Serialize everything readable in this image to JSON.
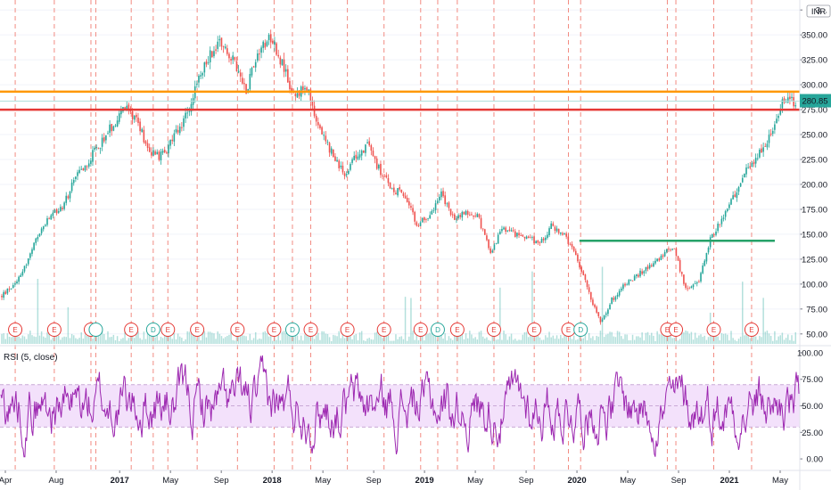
{
  "chart_data": [
    {
      "type": "candlestick",
      "currency": "INR",
      "last_price": "280.85",
      "y_range": [
        40,
        385
      ],
      "y_ticks": [
        "50.00",
        "75.00",
        "100.00",
        "125.00",
        "150.00",
        "175.00",
        "200.00",
        "225.00",
        "250.00",
        "275.00",
        "300.00",
        "325.00",
        "350.00",
        "3..."
      ],
      "y_tick_values": [
        50,
        75,
        100,
        125,
        150,
        175,
        200,
        225,
        250,
        275,
        300,
        325,
        350,
        375
      ],
      "x_axis_labels": [
        {
          "t": "Apr",
          "pos": 0,
          "bold": false
        },
        {
          "t": "Aug",
          "pos": 4,
          "bold": false
        },
        {
          "t": "2017",
          "pos": 9,
          "bold": true
        },
        {
          "t": "May",
          "pos": 13,
          "bold": false
        },
        {
          "t": "Sep",
          "pos": 17,
          "bold": false
        },
        {
          "t": "2018",
          "pos": 21,
          "bold": true
        },
        {
          "t": "May",
          "pos": 25,
          "bold": false
        },
        {
          "t": "Sep",
          "pos": 29,
          "bold": false
        },
        {
          "t": "2019",
          "pos": 33,
          "bold": true
        },
        {
          "t": "May",
          "pos": 37,
          "bold": false
        },
        {
          "t": "Sep",
          "pos": 41,
          "bold": false
        },
        {
          "t": "2020",
          "pos": 45,
          "bold": true
        },
        {
          "t": "May",
          "pos": 49,
          "bold": false
        },
        {
          "t": "Sep",
          "pos": 53,
          "bold": false
        },
        {
          "t": "2021",
          "pos": 57,
          "bold": true
        },
        {
          "t": "May",
          "pos": 61,
          "bold": false
        }
      ],
      "price_path": [
        [
          0,
          88
        ],
        [
          1,
          100
        ],
        [
          2,
          120
        ],
        [
          3,
          150
        ],
        [
          4,
          168
        ],
        [
          5,
          178
        ],
        [
          6,
          205
        ],
        [
          7,
          222
        ],
        [
          8,
          240
        ],
        [
          9,
          258
        ],
        [
          10,
          276
        ],
        [
          11,
          268
        ],
        [
          12,
          235
        ],
        [
          13,
          228
        ],
        [
          14,
          245
        ],
        [
          15,
          265
        ],
        [
          16,
          300
        ],
        [
          17,
          330
        ],
        [
          18,
          345
        ],
        [
          19,
          322
        ],
        [
          20,
          295
        ],
        [
          21,
          335
        ],
        [
          22,
          350
        ],
        [
          23,
          320
        ],
        [
          24,
          285
        ],
        [
          25,
          300
        ],
        [
          26,
          255
        ],
        [
          27,
          232
        ],
        [
          28,
          210
        ],
        [
          29,
          228
        ],
        [
          30,
          240
        ],
        [
          31,
          212
        ],
        [
          32,
          195
        ],
        [
          33,
          190
        ],
        [
          34,
          158
        ],
        [
          35,
          170
        ],
        [
          36,
          190
        ],
        [
          37,
          165
        ],
        [
          38,
          172
        ],
        [
          39,
          168
        ],
        [
          40,
          132
        ],
        [
          41,
          155
        ],
        [
          42,
          150
        ],
        [
          43,
          148
        ],
        [
          44,
          140
        ],
        [
          45,
          158
        ],
        [
          46,
          150
        ],
        [
          47,
          128
        ],
        [
          48,
          95
        ],
        [
          49,
          62
        ],
        [
          50,
          85
        ],
        [
          51,
          100
        ],
        [
          52,
          108
        ],
        [
          53,
          118
        ],
        [
          54,
          128
        ],
        [
          55,
          138
        ],
        [
          56,
          95
        ],
        [
          57,
          100
        ],
        [
          58,
          145
        ],
        [
          59,
          165
        ],
        [
          60,
          190
        ],
        [
          61,
          215
        ],
        [
          62,
          230
        ],
        [
          63,
          250
        ],
        [
          64,
          288
        ],
        [
          65,
          281
        ]
      ],
      "lines": [
        {
          "name": "orange-resistance",
          "price": 293,
          "color": "#ff9800"
        },
        {
          "name": "red-support",
          "price": 275,
          "color": "#e53935"
        },
        {
          "name": "green-level",
          "price": 143.5,
          "from_pos": 47.3,
          "to_pos": 63.3,
          "color": "#26a269"
        }
      ],
      "event_markers": [
        {
          "pos": 1.1,
          "label": "E",
          "type": "earnings"
        },
        {
          "pos": 4.3,
          "label": "E",
          "type": "earnings"
        },
        {
          "pos": 7.3,
          "label": "E",
          "type": "earnings"
        },
        {
          "pos": 7.7,
          "label": "",
          "type": "dividend"
        },
        {
          "pos": 10.6,
          "label": "E",
          "type": "earnings"
        },
        {
          "pos": 12.4,
          "label": "D",
          "type": "dividend"
        },
        {
          "pos": 13.6,
          "label": "E",
          "type": "earnings"
        },
        {
          "pos": 16.0,
          "label": "E",
          "type": "earnings"
        },
        {
          "pos": 19.3,
          "label": "E",
          "type": "earnings"
        },
        {
          "pos": 22.3,
          "label": "E",
          "type": "earnings"
        },
        {
          "pos": 23.8,
          "label": "D",
          "type": "dividend"
        },
        {
          "pos": 25.3,
          "label": "E",
          "type": "earnings"
        },
        {
          "pos": 28.3,
          "label": "E",
          "type": "earnings"
        },
        {
          "pos": 31.3,
          "label": "E",
          "type": "earnings"
        },
        {
          "pos": 34.3,
          "label": "E",
          "type": "earnings"
        },
        {
          "pos": 35.7,
          "label": "D",
          "type": "dividend"
        },
        {
          "pos": 37.3,
          "label": "E",
          "type": "earnings"
        },
        {
          "pos": 40.3,
          "label": "E",
          "type": "earnings"
        },
        {
          "pos": 43.6,
          "label": "E",
          "type": "earnings"
        },
        {
          "pos": 46.4,
          "label": "E",
          "type": "earnings"
        },
        {
          "pos": 47.4,
          "label": "D",
          "type": "dividend"
        },
        {
          "pos": 54.5,
          "label": "E",
          "type": "earnings"
        },
        {
          "pos": 55.2,
          "label": "E",
          "type": "earnings"
        },
        {
          "pos": 58.3,
          "label": "E",
          "type": "earnings"
        },
        {
          "pos": 61.4,
          "label": "E",
          "type": "earnings"
        }
      ],
      "colors": {
        "up": "#26a69a",
        "down": "#ef5350",
        "event_red": "#e53935",
        "event_teal": "#26a69a",
        "volume": "#26a69a"
      }
    },
    {
      "type": "line",
      "title": "RSI (5, close)",
      "y_range": [
        -10,
        105
      ],
      "y_ticks": [
        "0.00",
        "25.00",
        "50.00",
        "75.00",
        "100.00"
      ],
      "y_tick_values": [
        0,
        25,
        50,
        75,
        100
      ],
      "band": [
        30,
        70
      ],
      "colors": {
        "line": "#9c27b0",
        "band": "#f3e1fb"
      }
    }
  ]
}
